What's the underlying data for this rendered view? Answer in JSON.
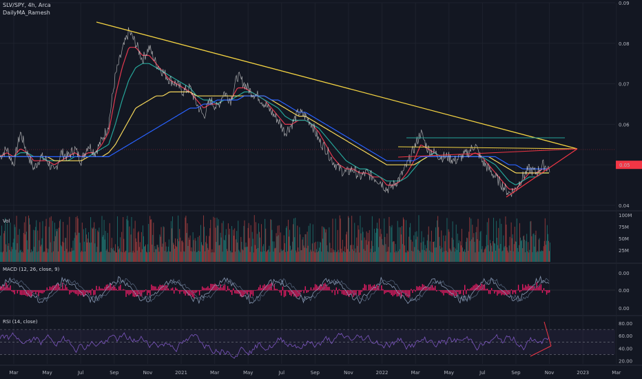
{
  "header": {
    "symbol_line": "SLV/SPY, 4h, Arca",
    "indicator_line": "DailyMA_Ramesh"
  },
  "panes": {
    "vol_label": "Vol",
    "macd_label": "MACD (12, 26, close, 9)",
    "rsi_label": "RSI (14, close)"
  },
  "colors": {
    "background": "#131722",
    "grid": "#1e222d",
    "price_line": "#d9d9d9",
    "ma_red": "#e53950",
    "ma_teal": "#26a69a",
    "ma_yellow": "#f5d65a",
    "ma_blue": "#2962ff",
    "trend_yellow": "#f5d442",
    "trend_red": "#f23645",
    "resistance_teal": "#26a69a",
    "macd_line": "#8a9ab5",
    "macd_hist": "#ff1d6c",
    "rsi_line": "#7e57c2",
    "price_badge": "#f23645"
  },
  "chart_data": [
    {
      "type": "line",
      "pane": "price",
      "title": "SLV/SPY, 4h, Arca",
      "y_ticks": [
        "0.09",
        "0.08",
        "0.07",
        "0.06",
        "0.05",
        "0.04"
      ],
      "ylim": [
        0.04,
        0.09
      ],
      "last_price_label": "0.05",
      "x_ticks": [
        "Mar",
        "May",
        "Jul",
        "Sep",
        "Nov",
        "2021",
        "Mar",
        "May",
        "Jul",
        "Sep",
        "Nov",
        "2022",
        "Mar",
        "May",
        "Jul",
        "Sep",
        "Nov",
        "2023",
        "Mar"
      ],
      "series": [
        {
          "role": "price",
          "values": [
            0.052,
            0.054,
            0.05,
            0.058,
            0.053,
            0.049,
            0.052,
            0.051,
            0.048,
            0.053,
            0.052,
            0.054,
            0.051,
            0.055,
            0.053,
            0.056,
            0.06,
            0.072,
            0.078,
            0.083,
            0.08,
            0.076,
            0.079,
            0.075,
            0.073,
            0.071,
            0.07,
            0.068,
            0.069,
            0.065,
            0.062,
            0.066,
            0.064,
            0.068,
            0.066,
            0.072,
            0.07,
            0.068,
            0.067,
            0.065,
            0.063,
            0.061,
            0.058,
            0.06,
            0.063,
            0.062,
            0.06,
            0.056,
            0.054,
            0.051,
            0.049,
            0.048,
            0.049,
            0.047,
            0.048,
            0.047,
            0.046,
            0.044,
            0.045,
            0.047,
            0.05,
            0.054,
            0.058,
            0.054,
            0.053,
            0.052,
            0.052,
            0.051,
            0.052,
            0.053,
            0.055,
            0.051,
            0.049,
            0.047,
            0.045,
            0.043,
            0.044,
            0.047,
            0.049,
            0.048,
            0.05,
            0.049
          ]
        },
        {
          "role": "moving-average-red",
          "values": [
            0.052,
            0.053,
            0.052,
            0.054,
            0.053,
            0.051,
            0.051,
            0.051,
            0.05,
            0.051,
            0.052,
            0.053,
            0.052,
            0.053,
            0.053,
            0.055,
            0.058,
            0.067,
            0.074,
            0.079,
            0.079,
            0.077,
            0.077,
            0.075,
            0.073,
            0.071,
            0.07,
            0.069,
            0.068,
            0.066,
            0.064,
            0.065,
            0.065,
            0.066,
            0.066,
            0.069,
            0.069,
            0.068,
            0.067,
            0.066,
            0.064,
            0.062,
            0.06,
            0.06,
            0.061,
            0.061,
            0.06,
            0.058,
            0.055,
            0.052,
            0.05,
            0.049,
            0.049,
            0.048,
            0.048,
            0.047,
            0.047,
            0.045,
            0.045,
            0.046,
            0.048,
            0.051,
            0.055,
            0.054,
            0.053,
            0.052,
            0.052,
            0.052,
            0.052,
            0.052,
            0.053,
            0.052,
            0.05,
            0.048,
            0.046,
            0.044,
            0.044,
            0.046,
            0.048,
            0.048,
            0.049,
            0.049
          ]
        },
        {
          "role": "moving-average-teal",
          "values": [
            0.052,
            0.052,
            0.052,
            0.053,
            0.053,
            0.052,
            0.052,
            0.051,
            0.051,
            0.051,
            0.051,
            0.052,
            0.052,
            0.052,
            0.053,
            0.054,
            0.055,
            0.06,
            0.066,
            0.071,
            0.074,
            0.075,
            0.075,
            0.074,
            0.073,
            0.072,
            0.071,
            0.07,
            0.069,
            0.067,
            0.066,
            0.066,
            0.065,
            0.066,
            0.066,
            0.067,
            0.068,
            0.068,
            0.067,
            0.066,
            0.065,
            0.064,
            0.062,
            0.061,
            0.061,
            0.061,
            0.06,
            0.059,
            0.057,
            0.055,
            0.053,
            0.051,
            0.05,
            0.049,
            0.049,
            0.048,
            0.047,
            0.046,
            0.046,
            0.046,
            0.047,
            0.049,
            0.051,
            0.052,
            0.053,
            0.052,
            0.052,
            0.052,
            0.052,
            0.052,
            0.052,
            0.052,
            0.051,
            0.05,
            0.048,
            0.046,
            0.045,
            0.046,
            0.047,
            0.047,
            0.048,
            0.048
          ]
        },
        {
          "role": "moving-average-yellow",
          "values": [
            0.052,
            0.052,
            0.052,
            0.052,
            0.052,
            0.052,
            0.052,
            0.052,
            0.051,
            0.051,
            0.051,
            0.051,
            0.051,
            0.052,
            0.052,
            0.052,
            0.053,
            0.055,
            0.058,
            0.061,
            0.064,
            0.065,
            0.066,
            0.067,
            0.067,
            0.068,
            0.068,
            0.068,
            0.068,
            0.067,
            0.067,
            0.067,
            0.067,
            0.067,
            0.067,
            0.067,
            0.067,
            0.067,
            0.067,
            0.067,
            0.066,
            0.065,
            0.064,
            0.063,
            0.062,
            0.062,
            0.061,
            0.06,
            0.059,
            0.058,
            0.057,
            0.056,
            0.055,
            0.054,
            0.053,
            0.052,
            0.051,
            0.05,
            0.05,
            0.05,
            0.05,
            0.05,
            0.051,
            0.052,
            0.052,
            0.052,
            0.052,
            0.052,
            0.052,
            0.052,
            0.052,
            0.052,
            0.052,
            0.051,
            0.05,
            0.049,
            0.048,
            0.048,
            0.048,
            0.048,
            0.048,
            0.048
          ]
        },
        {
          "role": "moving-average-blue",
          "values": [
            0.052,
            0.052,
            0.052,
            0.052,
            0.052,
            0.052,
            0.052,
            0.052,
            0.052,
            0.052,
            0.052,
            0.052,
            0.052,
            0.052,
            0.052,
            0.052,
            0.052,
            0.053,
            0.054,
            0.055,
            0.056,
            0.057,
            0.058,
            0.059,
            0.06,
            0.061,
            0.062,
            0.063,
            0.064,
            0.064,
            0.065,
            0.065,
            0.066,
            0.066,
            0.066,
            0.066,
            0.067,
            0.067,
            0.067,
            0.067,
            0.066,
            0.066,
            0.065,
            0.064,
            0.063,
            0.063,
            0.062,
            0.061,
            0.06,
            0.059,
            0.058,
            0.057,
            0.056,
            0.055,
            0.054,
            0.053,
            0.052,
            0.051,
            0.051,
            0.051,
            0.051,
            0.051,
            0.052,
            0.052,
            0.052,
            0.052,
            0.052,
            0.052,
            0.052,
            0.052,
            0.052,
            0.052,
            0.052,
            0.052,
            0.051,
            0.05,
            0.05,
            0.049,
            0.049,
            0.049,
            0.049,
            0.049
          ]
        }
      ]
    },
    {
      "type": "bar",
      "pane": "volume",
      "title": "Vol",
      "y_ticks": [
        "100M",
        "75M",
        "50M",
        "25M"
      ],
      "ylim": [
        0,
        100
      ]
    },
    {
      "type": "line",
      "pane": "macd",
      "title": "MACD (12, 26, close, 9)",
      "y_ticks": [
        "0.00",
        "0.00",
        "0.00"
      ]
    },
    {
      "type": "line",
      "pane": "rsi",
      "title": "RSI (14, close)",
      "y_ticks": [
        "80.00",
        "60.00",
        "40.00",
        "20.00"
      ],
      "ylim": [
        15,
        90
      ],
      "bands": [
        70,
        50,
        30
      ]
    }
  ]
}
